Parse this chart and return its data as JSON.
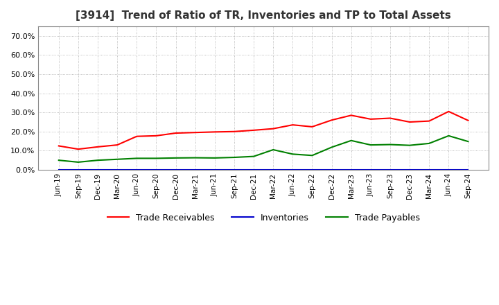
{
  "title": "[3914]  Trend of Ratio of TR, Inventories and TP to Total Assets",
  "ylim": [
    0.0,
    0.75
  ],
  "yticks": [
    0.0,
    0.1,
    0.2,
    0.3,
    0.4,
    0.5,
    0.6,
    0.7
  ],
  "x_labels": [
    "Jun-19",
    "Sep-19",
    "Dec-19",
    "Mar-20",
    "Jun-20",
    "Sep-20",
    "Dec-20",
    "Mar-21",
    "Jun-21",
    "Sep-21",
    "Dec-21",
    "Mar-22",
    "Jun-22",
    "Sep-22",
    "Dec-22",
    "Mar-23",
    "Jun-23",
    "Sep-23",
    "Dec-23",
    "Mar-24",
    "Jun-24",
    "Sep-24"
  ],
  "trade_receivables": [
    0.125,
    0.108,
    0.12,
    0.13,
    0.175,
    0.178,
    0.192,
    0.195,
    0.198,
    0.2,
    0.207,
    0.215,
    0.235,
    0.225,
    0.26,
    0.285,
    0.265,
    0.27,
    0.25,
    0.255,
    0.305,
    0.258
  ],
  "inventories": [
    0.001,
    0.001,
    0.001,
    0.001,
    0.001,
    0.001,
    0.001,
    0.001,
    0.001,
    0.001,
    0.001,
    0.001,
    0.001,
    0.001,
    0.001,
    0.001,
    0.001,
    0.001,
    0.001,
    0.001,
    0.001,
    0.001
  ],
  "trade_payables": [
    0.05,
    0.04,
    0.05,
    0.055,
    0.06,
    0.06,
    0.062,
    0.063,
    0.062,
    0.065,
    0.07,
    0.105,
    0.082,
    0.075,
    0.118,
    0.153,
    0.13,
    0.132,
    0.128,
    0.138,
    0.178,
    0.148
  ],
  "tr_color": "#ff0000",
  "inv_color": "#0000cc",
  "tp_color": "#008000",
  "line_width": 1.5,
  "bg_color": "#ffffff",
  "grid_color": "#aaaaaa",
  "title_color": "#333333",
  "legend_labels": [
    "Trade Receivables",
    "Inventories",
    "Trade Payables"
  ]
}
